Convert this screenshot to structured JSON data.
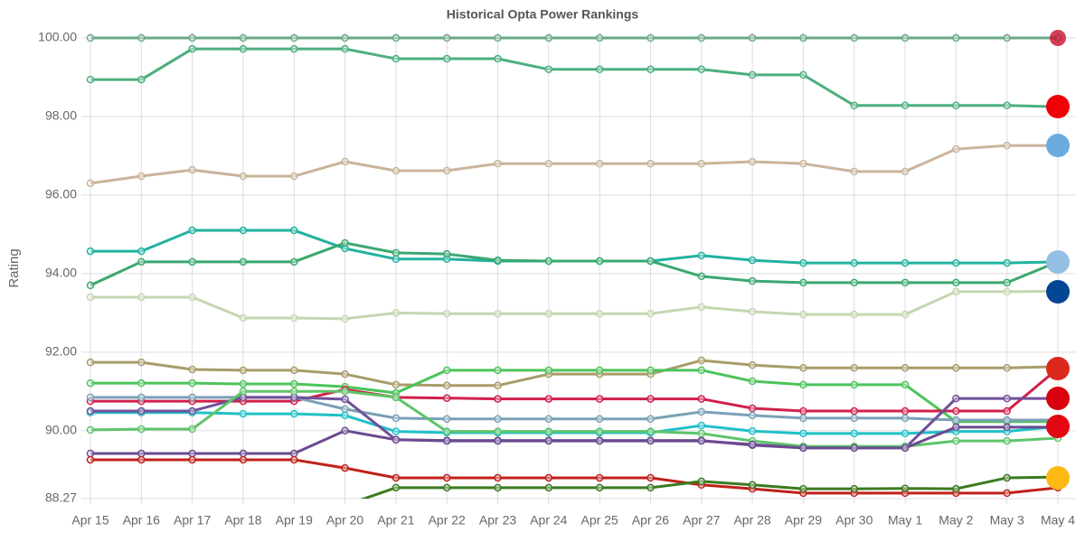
{
  "chart_data": {
    "type": "line",
    "title": "Historical Opta Power Rankings",
    "y_label": "Rating",
    "categories": [
      "Apr 15",
      "Apr 16",
      "Apr 17",
      "Apr 18",
      "Apr 19",
      "Apr 20",
      "Apr 21",
      "Apr 22",
      "Apr 23",
      "Apr 24",
      "Apr 25",
      "Apr 26",
      "Apr 27",
      "Apr 28",
      "Apr 29",
      "Apr 30",
      "May 1",
      "May 2",
      "May 3",
      "May 4"
    ],
    "ylim": [
      88.27,
      100
    ],
    "yticks": [
      88.27,
      {
        "value": 90,
        "label": "90.00"
      },
      {
        "value": 92,
        "label": "92.00"
      },
      {
        "value": 94,
        "label": "94.00"
      },
      {
        "value": 96,
        "label": "96.00"
      },
      {
        "value": 98,
        "label": "98.00"
      },
      {
        "value": 100,
        "label": "100.00"
      }
    ],
    "grid": true,
    "series": [
      {
        "color": "#6aa888",
        "values": [
          100,
          100,
          100,
          100,
          100,
          100,
          100,
          100,
          100,
          100,
          100,
          100,
          100,
          100,
          100,
          100,
          100,
          100,
          100,
          100
        ]
      },
      {
        "color": "#4caf7d",
        "values": [
          98.94,
          98.94,
          99.72,
          99.72,
          99.72,
          99.72,
          99.47,
          99.47,
          99.47,
          99.2,
          99.2,
          99.2,
          99.2,
          99.06,
          99.06,
          98.28,
          98.28,
          98.28,
          98.28,
          98.25
        ]
      },
      {
        "color": "#c9b49a",
        "values": [
          96.3,
          96.48,
          96.64,
          96.48,
          96.48,
          96.85,
          96.62,
          96.62,
          96.8,
          96.8,
          96.8,
          96.8,
          96.8,
          96.85,
          96.8,
          96.6,
          96.6,
          97.17,
          97.26,
          97.26
        ]
      },
      {
        "color": "#20b2a0",
        "values": [
          94.57,
          94.57,
          95.1,
          95.1,
          95.1,
          94.64,
          94.37,
          94.37,
          94.32,
          94.32,
          94.32,
          94.32,
          94.46,
          94.34,
          94.27,
          94.27,
          94.27,
          94.27,
          94.27,
          94.3
        ]
      },
      {
        "color": "#3aa870",
        "values": [
          93.7,
          94.3,
          94.3,
          94.3,
          94.3,
          94.78,
          94.53,
          94.5,
          94.34,
          94.32,
          94.32,
          94.32,
          93.93,
          93.81,
          93.77,
          93.77,
          93.77,
          93.77,
          93.77,
          94.3
        ]
      },
      {
        "color": "#c5d6b0",
        "values": [
          93.4,
          93.4,
          93.4,
          92.87,
          92.87,
          92.85,
          93.0,
          92.98,
          92.98,
          92.98,
          92.98,
          92.98,
          93.15,
          93.03,
          92.96,
          92.96,
          92.96,
          93.54,
          93.54,
          93.55
        ]
      },
      {
        "color": "#a89c6a",
        "values": [
          91.74,
          91.74,
          91.56,
          91.54,
          91.54,
          91.44,
          91.17,
          91.15,
          91.15,
          91.44,
          91.44,
          91.44,
          91.79,
          91.67,
          91.6,
          91.6,
          91.6,
          91.6,
          91.6,
          91.63
        ]
      },
      {
        "color": "#4cc45a",
        "values": [
          91.21,
          91.21,
          91.21,
          91.19,
          91.19,
          91.12,
          90.96,
          91.54,
          91.54,
          91.54,
          91.54,
          91.54,
          91.54,
          91.26,
          91.17,
          91.17,
          91.17,
          90.23,
          90.23,
          90.23
        ]
      },
      {
        "color": "#d0204a",
        "values": [
          90.75,
          90.75,
          90.75,
          90.75,
          90.75,
          91.05,
          90.85,
          90.83,
          90.81,
          90.81,
          90.81,
          90.81,
          90.81,
          90.57,
          90.5,
          90.5,
          90.5,
          90.5,
          90.5,
          91.58
        ]
      },
      {
        "color": "#7aa0b8",
        "values": [
          90.85,
          90.85,
          90.85,
          90.85,
          90.85,
          90.55,
          90.32,
          90.3,
          90.3,
          90.3,
          90.3,
          90.3,
          90.48,
          90.39,
          90.32,
          90.32,
          90.32,
          90.27,
          90.27,
          90.27
        ]
      },
      {
        "color": "#20c0c8",
        "values": [
          90.46,
          90.46,
          90.46,
          90.43,
          90.43,
          90.39,
          89.98,
          89.95,
          89.95,
          89.95,
          89.95,
          89.95,
          90.13,
          89.99,
          89.93,
          89.93,
          89.93,
          89.98,
          89.98,
          90.11
        ]
      },
      {
        "color": "#70509a",
        "values": [
          90.5,
          90.5,
          90.5,
          90.85,
          90.85,
          90.8,
          89.77,
          89.75,
          89.75,
          89.75,
          89.75,
          89.75,
          89.75,
          89.63,
          89.56,
          89.56,
          89.56,
          90.82,
          90.82,
          90.82
        ]
      },
      {
        "color": "#5ec46a",
        "values": [
          90.02,
          90.04,
          90.04,
          91.0,
          91.0,
          91.0,
          90.85,
          89.98,
          89.98,
          89.98,
          89.98,
          89.98,
          89.93,
          89.74,
          89.6,
          89.6,
          89.6,
          89.74,
          89.74,
          89.81
        ]
      },
      {
        "color": "#6a4a90",
        "values": [
          89.42,
          89.42,
          89.42,
          89.42,
          89.42,
          90.0,
          89.77,
          89.74,
          89.74,
          89.74,
          89.74,
          89.74,
          89.74,
          89.65,
          89.56,
          89.56,
          89.56,
          90.09,
          90.09,
          90.09
        ]
      },
      {
        "color": "#c0201a",
        "values": [
          89.26,
          89.26,
          89.26,
          89.26,
          89.26,
          89.05,
          88.8,
          88.8,
          88.8,
          88.8,
          88.8,
          88.8,
          88.62,
          88.52,
          88.41,
          88.41,
          88.41,
          88.41,
          88.41,
          88.55
        ]
      },
      {
        "color": "#3a7a20",
        "values": [
          null,
          null,
          null,
          null,
          null,
          88.1,
          88.55,
          88.55,
          88.55,
          88.55,
          88.55,
          88.55,
          88.71,
          88.62,
          88.52,
          88.52,
          88.53,
          88.52,
          88.8,
          88.82
        ]
      }
    ]
  }
}
